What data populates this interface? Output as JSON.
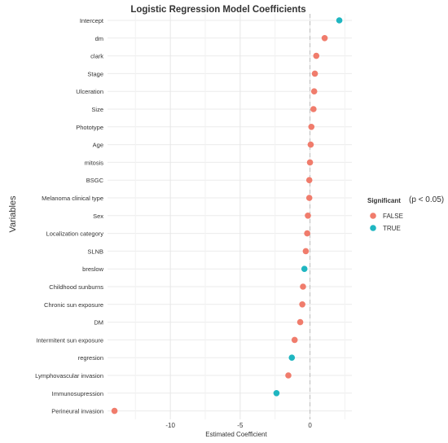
{
  "chart_data": {
    "type": "scatter",
    "title": "Logistic Regression Model Coefficients",
    "xlabel": "Estimated Coefficient",
    "ylabel": "Variables",
    "x_ticks": [
      -10,
      -5,
      0
    ],
    "x_tick_labels": [
      "-10",
      "-5",
      "0"
    ],
    "xlim": [
      -14.5,
      3
    ],
    "reference_line_x": 0,
    "grid": true,
    "legend": {
      "title": "Significant",
      "note": "(p < 0.05)",
      "entries": [
        {
          "label": "FALSE",
          "color": "#F07C6C"
        },
        {
          "label": "TRUE",
          "color": "#1FB6C1"
        }
      ],
      "position": "right"
    },
    "categories": [
      "Intercept",
      "dm",
      "clark",
      "Stage",
      "Ulceration",
      "Size",
      "Phototype",
      "Age",
      "mitosis",
      "BSGC",
      "Melanoma clinical type",
      "Sex",
      "Localization category",
      "SLNB",
      "breslow",
      "Childhood sunburns",
      "Chronic sun exposure",
      "DM",
      "Intermitent sun exposure",
      "regresion",
      "Lymphovascular invasion",
      "Immunosupression",
      "Perineural invasion"
    ],
    "values": [
      2.1,
      1.05,
      0.45,
      0.35,
      0.3,
      0.25,
      0.1,
      0.05,
      0.0,
      -0.05,
      -0.05,
      -0.15,
      -0.2,
      -0.3,
      -0.4,
      -0.5,
      -0.55,
      -0.7,
      -1.1,
      -1.3,
      -1.55,
      -2.4,
      -14.0
    ],
    "significant": [
      true,
      false,
      false,
      false,
      false,
      false,
      false,
      false,
      false,
      false,
      false,
      false,
      false,
      false,
      true,
      false,
      false,
      false,
      false,
      true,
      false,
      true,
      false
    ]
  }
}
